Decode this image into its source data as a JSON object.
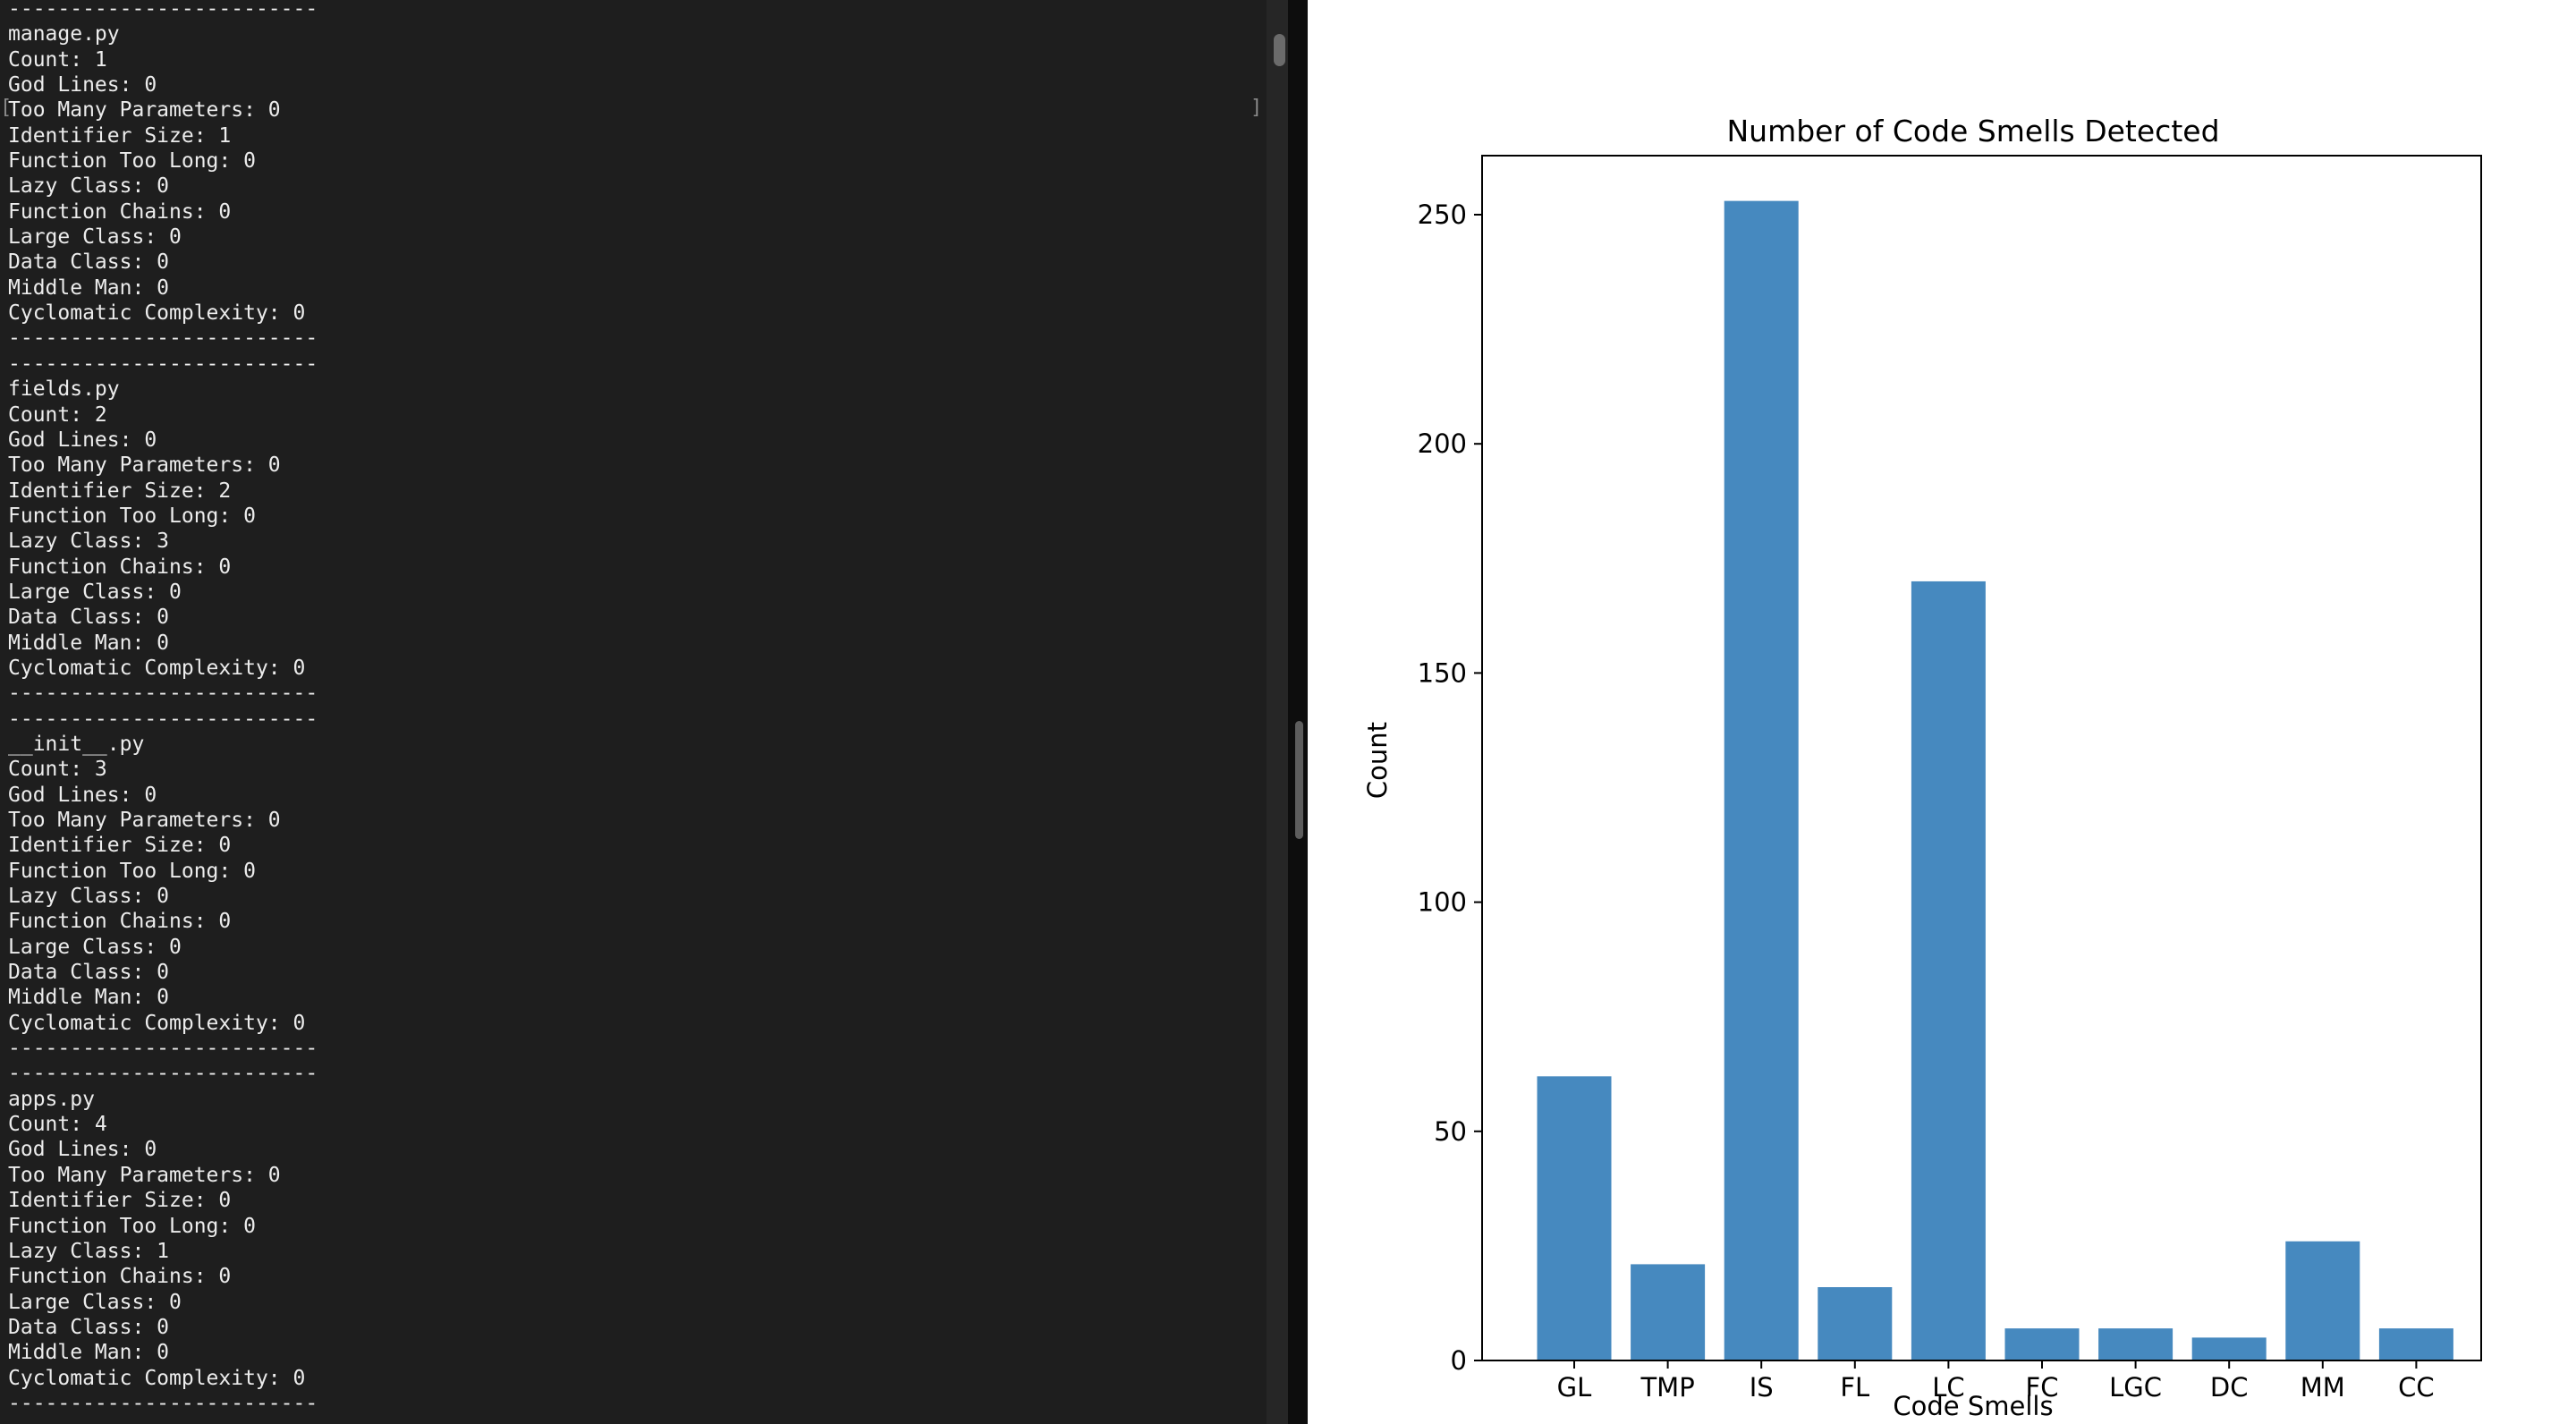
{
  "terminal": {
    "lines": [
      "-------------------------",
      "manage.py",
      "Count: 1",
      "God Lines: 0",
      "Too Many Parameters: 0",
      "Identifier Size: 1",
      "Function Too Long: 0",
      "Lazy Class: 0",
      "Function Chains: 0",
      "Large Class: 0",
      "Data Class: 0",
      "Middle Man: 0",
      "Cyclomatic Complexity: 0",
      "-------------------------",
      "-------------------------",
      "fields.py",
      "Count: 2",
      "God Lines: 0",
      "Too Many Parameters: 0",
      "Identifier Size: 2",
      "Function Too Long: 0",
      "Lazy Class: 3",
      "Function Chains: 0",
      "Large Class: 0",
      "Data Class: 0",
      "Middle Man: 0",
      "Cyclomatic Complexity: 0",
      "-------------------------",
      "-------------------------",
      "__init__.py",
      "Count: 3",
      "God Lines: 0",
      "Too Many Parameters: 0",
      "Identifier Size: 0",
      "Function Too Long: 0",
      "Lazy Class: 0",
      "Function Chains: 0",
      "Large Class: 0",
      "Data Class: 0",
      "Middle Man: 0",
      "Cyclomatic Complexity: 0",
      "-------------------------",
      "-------------------------",
      "apps.py",
      "Count: 4",
      "God Lines: 0",
      "Too Many Parameters: 0",
      "Identifier Size: 0",
      "Function Too Long: 0",
      "Lazy Class: 1",
      "Function Chains: 0",
      "Large Class: 0",
      "Data Class: 0",
      "Middle Man: 0",
      "Cyclomatic Complexity: 0",
      "-------------------------",
      "-------------------------"
    ],
    "background": "#1e1e1e",
    "text_color": "#ececec"
  },
  "chart_data": {
    "type": "bar",
    "title": "Number of Code Smells Detected",
    "xlabel": "Code Smells",
    "ylabel": "Count",
    "categories": [
      "GL",
      "TMP",
      "IS",
      "FL",
      "LC",
      "FC",
      "LGC",
      "DC",
      "MM",
      "CC"
    ],
    "values": [
      62,
      21,
      253,
      16,
      170,
      7,
      7,
      5,
      26,
      7
    ],
    "ylim": [
      0,
      250
    ],
    "yticks": [
      0,
      50,
      100,
      150,
      200,
      250
    ],
    "bar_color": "#4689bf",
    "grid": false
  }
}
